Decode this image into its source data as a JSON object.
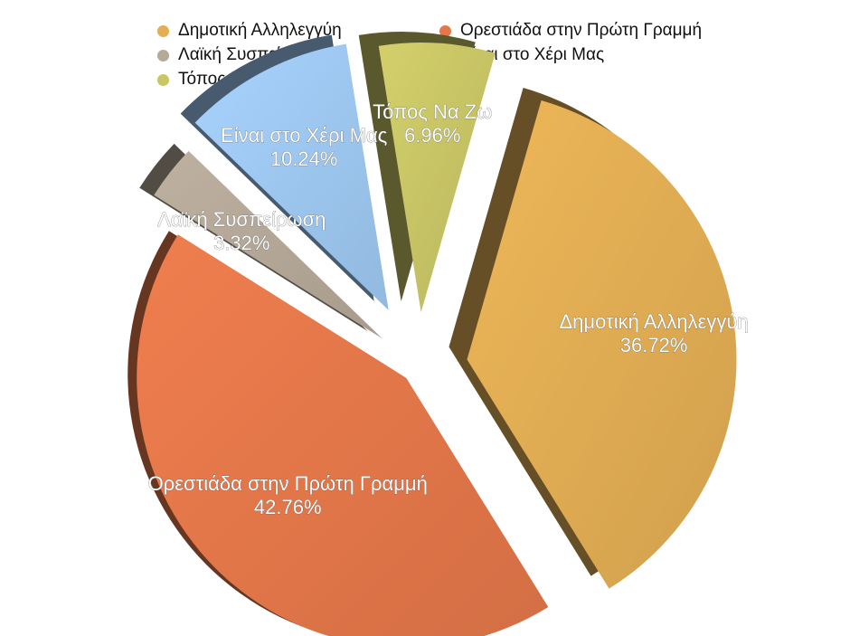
{
  "chart_data": {
    "type": "pie",
    "style": "3d-exploded",
    "title": "",
    "legend": {
      "placement": "top"
    },
    "slices": [
      {
        "label": "Δημοτική Αλληλεγγύη",
        "value": 36.72,
        "value_label": "36.72%",
        "color": "#E3AE54"
      },
      {
        "label": "Ορεστιάδα στην Πρώτη Γραμμή",
        "value": 42.76,
        "value_label": "42.76%",
        "color": "#E5784A"
      },
      {
        "label": "Λαϊκή Συσπείρωση",
        "value": 3.32,
        "value_label": "3.32%",
        "color": "#B5A998"
      },
      {
        "label": "Είναι στο Χέρι Μας",
        "value": 10.24,
        "value_label": "10.24%",
        "color": "#9FC9F2"
      },
      {
        "label": "Τόπος Να Ζω",
        "value": 6.96,
        "value_label": "6.96%",
        "color": "#C9C666"
      }
    ]
  }
}
